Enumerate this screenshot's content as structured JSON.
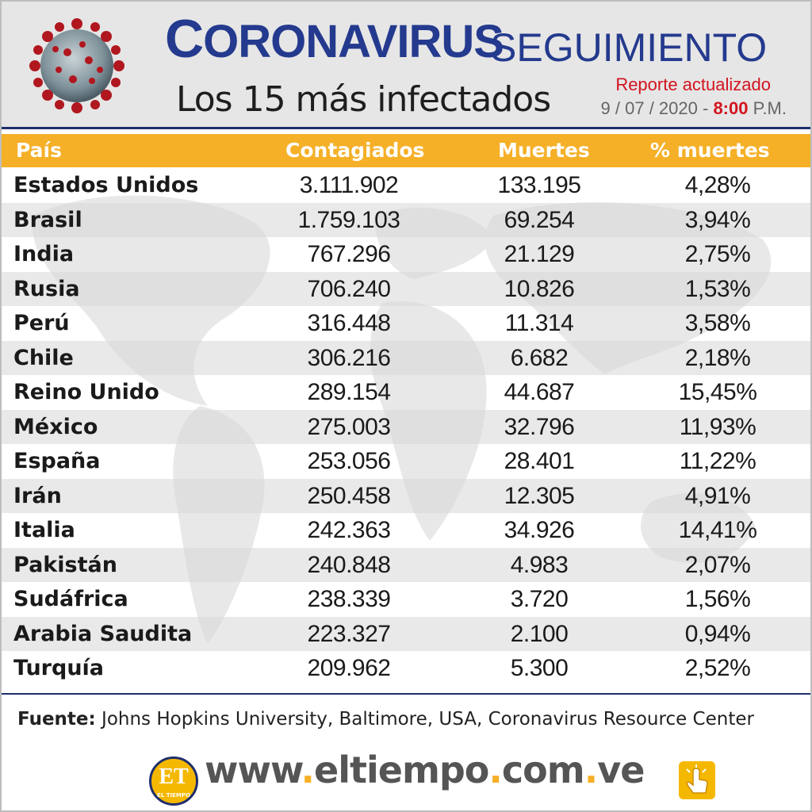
{
  "header": {
    "title_initial": "C",
    "title_rest": "ORONAVIRUS",
    "title_second": "SEGUIMIENTO",
    "subtitle": "Los 15 más infectados",
    "report_label": "Reporte actualizado",
    "report_date": "9 / 07 / 2020 -",
    "report_time": "8:00",
    "report_ampm": "P.M."
  },
  "table": {
    "columns": [
      "País",
      "Contagiados",
      "Muertes",
      "% muertes"
    ],
    "rows": [
      {
        "country": "Estados Unidos",
        "cases": "3.111.902",
        "deaths": "133.195",
        "pct": "4,28%"
      },
      {
        "country": "Brasil",
        "cases": "1.759.103",
        "deaths": "69.254",
        "pct": "3,94%"
      },
      {
        "country": "India",
        "cases": "767.296",
        "deaths": "21.129",
        "pct": "2,75%"
      },
      {
        "country": "Rusia",
        "cases": "706.240",
        "deaths": "10.826",
        "pct": "1,53%"
      },
      {
        "country": "Perú",
        "cases": "316.448",
        "deaths": "11.314",
        "pct": "3,58%"
      },
      {
        "country": "Chile",
        "cases": "306.216",
        "deaths": "6.682",
        "pct": "2,18%"
      },
      {
        "country": "Reino Unido",
        "cases": "289.154",
        "deaths": "44.687",
        "pct": "15,45%"
      },
      {
        "country": "México",
        "cases": "275.003",
        "deaths": "32.796",
        "pct": "11,93%"
      },
      {
        "country": "España",
        "cases": "253.056",
        "deaths": "28.401",
        "pct": "11,22%"
      },
      {
        "country": "Irán",
        "cases": "250.458",
        "deaths": "12.305",
        "pct": "4,91%"
      },
      {
        "country": "Italia",
        "cases": "242.363",
        "deaths": "34.926",
        "pct": "14,41%"
      },
      {
        "country": "Pakistán",
        "cases": "240.848",
        "deaths": "4.983",
        "pct": "2,07%"
      },
      {
        "country": "Sudáfrica",
        "cases": "238.339",
        "deaths": "3.720",
        "pct": "1,56%"
      },
      {
        "country": "Arabia Saudita",
        "cases": "223.327",
        "deaths": "2.100",
        "pct": "0,94%"
      },
      {
        "country": "Turquía",
        "cases": "209.962",
        "deaths": "5.300",
        "pct": "2,52%"
      }
    ]
  },
  "footer": {
    "source_label": "Fuente:",
    "source_text": " Johns Hopkins University, Baltimore, USA, Coronavirus Resource Center",
    "logo_text": "ET",
    "logo_small": "EL TIEMPO",
    "url_parts": [
      "www",
      ".",
      "eltiempo",
      ".",
      "com",
      ".",
      "ve"
    ]
  },
  "colors": {
    "navy": "#243a8e",
    "header_bar": "#f5b027",
    "accent_red": "#d2141e",
    "logo_yellow": "#f5b800"
  },
  "icons": [
    "coronavirus-icon",
    "world-map-icon",
    "el-tiempo-logo",
    "click-hand-icon"
  ]
}
